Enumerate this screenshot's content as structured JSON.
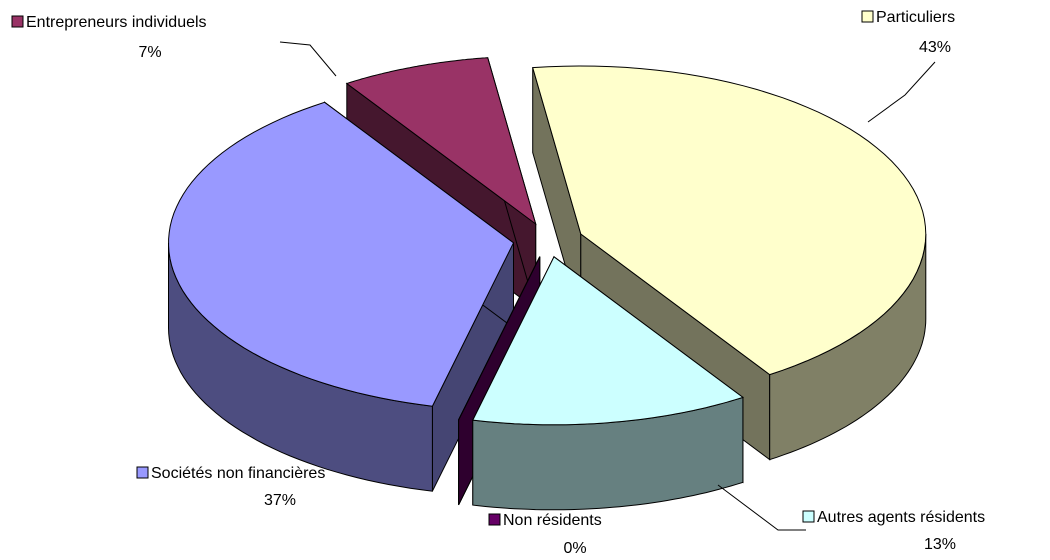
{
  "chart_data": {
    "type": "pie3d",
    "categories": [
      "Particuliers",
      "Autres agents résidents",
      "Non résidents",
      "Sociétés non financières",
      "Entrepreneurs individuels"
    ],
    "values": [
      43,
      13,
      0,
      37,
      7
    ],
    "value_labels": [
      "43%",
      "13%",
      "0%",
      "37%",
      "7%"
    ],
    "colors": [
      "#ffffcc",
      "#ccffff",
      "#660066",
      "#9999ff",
      "#993366"
    ]
  }
}
